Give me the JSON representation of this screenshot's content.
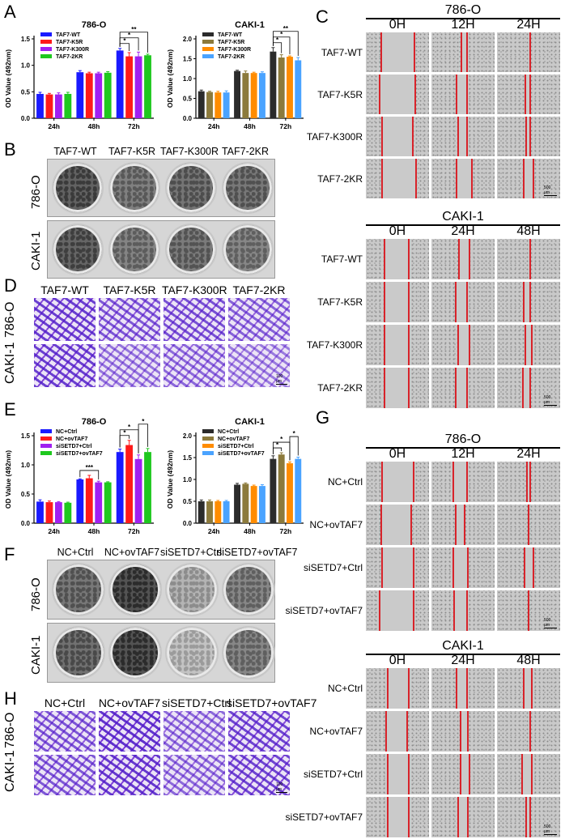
{
  "figure": {
    "panels": {
      "A": "A",
      "B": "B",
      "C": "C",
      "D": "D",
      "E": "E",
      "F": "F",
      "G": "G",
      "H": "H"
    }
  },
  "chart_data": [
    {
      "id": "A-786O",
      "type": "bar",
      "title": "786-O",
      "xlabel": "",
      "ylabel": "OD Value (492nm)",
      "ylim": [
        0,
        1.5
      ],
      "yticks": [
        "0.0",
        "0.5",
        "1.0",
        "1.5"
      ],
      "categories": [
        "24h",
        "48h",
        "72h"
      ],
      "legend_position": "top-left",
      "series": [
        {
          "name": "TAF7-WT",
          "color": "#1a1aff",
          "values": [
            0.46,
            0.87,
            1.28
          ],
          "errors": [
            0.03,
            0.03,
            0.04
          ]
        },
        {
          "name": "TAF7-K5R",
          "color": "#ff1a1a",
          "values": [
            0.45,
            0.85,
            1.17
          ],
          "errors": [
            0.02,
            0.02,
            0.07
          ]
        },
        {
          "name": "TAF7-K300R",
          "color": "#a020f0",
          "values": [
            0.45,
            0.85,
            1.17
          ],
          "errors": [
            0.03,
            0.02,
            0.08
          ]
        },
        {
          "name": "TAF7-2KR",
          "color": "#1ec81e",
          "values": [
            0.46,
            0.86,
            1.19
          ],
          "errors": [
            0.03,
            0.02,
            0.02
          ]
        }
      ],
      "annotations": [
        {
          "group": "72h",
          "from": "TAF7-WT",
          "to": "TAF7-K5R",
          "label": "*"
        },
        {
          "group": "72h",
          "from": "TAF7-WT",
          "to": "TAF7-K300R",
          "label": "*"
        },
        {
          "group": "72h",
          "from": "TAF7-WT",
          "to": "TAF7-2KR",
          "label": "**"
        }
      ]
    },
    {
      "id": "A-CAKI1",
      "type": "bar",
      "title": "CAKI-1",
      "xlabel": "",
      "ylabel": "OD Value (492nm)",
      "ylim": [
        0,
        2.0
      ],
      "yticks": [
        "0.0",
        "0.5",
        "1.0",
        "1.5",
        "2.0"
      ],
      "categories": [
        "24h",
        "48h",
        "72h"
      ],
      "legend_position": "top-left",
      "series": [
        {
          "name": "TAF7-WT",
          "color": "#2b2b2b",
          "values": [
            0.68,
            1.19,
            1.68
          ],
          "errors": [
            0.03,
            0.02,
            0.1
          ]
        },
        {
          "name": "TAF7-K5R",
          "color": "#8c7a3c",
          "values": [
            0.66,
            1.14,
            1.53
          ],
          "errors": [
            0.02,
            0.05,
            0.07
          ]
        },
        {
          "name": "TAF7-K300R",
          "color": "#ff8c00",
          "values": [
            0.65,
            1.14,
            1.55
          ],
          "errors": [
            0.03,
            0.02,
            0.02
          ]
        },
        {
          "name": "TAF7-2KR",
          "color": "#4aa3ff",
          "values": [
            0.65,
            1.14,
            1.46
          ],
          "errors": [
            0.04,
            0.03,
            0.07
          ]
        }
      ],
      "annotations": [
        {
          "group": "72h",
          "from": "TAF7-WT",
          "to": "TAF7-K5R",
          "label": "*"
        },
        {
          "group": "72h",
          "from": "TAF7-WT",
          "to": "TAF7-K300R",
          "label": "*"
        },
        {
          "group": "72h",
          "from": "TAF7-WT",
          "to": "TAF7-2KR",
          "label": "**"
        }
      ]
    },
    {
      "id": "E-786O",
      "type": "bar",
      "title": "786-O",
      "xlabel": "",
      "ylabel": "OD Value (492nm)",
      "ylim": [
        0,
        1.5
      ],
      "yticks": [
        "0.0",
        "0.5",
        "1.0",
        "1.5"
      ],
      "categories": [
        "24h",
        "48h",
        "72h"
      ],
      "legend_position": "top-left",
      "series": [
        {
          "name": "NC+Ctrl",
          "color": "#1a1aff",
          "values": [
            0.37,
            0.75,
            1.22
          ],
          "errors": [
            0.03,
            0.01,
            0.05
          ]
        },
        {
          "name": "NC+ovTAF7",
          "color": "#ff1a1a",
          "values": [
            0.36,
            0.77,
            1.34
          ],
          "errors": [
            0.02,
            0.05,
            0.08
          ]
        },
        {
          "name": "siSETD7+Ctrl",
          "color": "#a020f0",
          "values": [
            0.36,
            0.7,
            1.1
          ],
          "errors": [
            0.01,
            0.02,
            0.07
          ]
        },
        {
          "name": "siSETD7+ovTAF7",
          "color": "#1ec81e",
          "values": [
            0.35,
            0.7,
            1.22
          ],
          "errors": [
            0.01,
            0.01,
            0.06
          ]
        }
      ],
      "annotations": [
        {
          "group": "48h",
          "from": "NC+Ctrl",
          "to": "siSETD7+Ctrl",
          "label": "***"
        },
        {
          "group": "72h",
          "from": "NC+Ctrl",
          "to": "NC+ovTAF7",
          "label": "*"
        },
        {
          "group": "72h",
          "from": "NC+Ctrl",
          "to": "siSETD7+Ctrl",
          "label": "*"
        },
        {
          "group": "72h",
          "from": "siSETD7+Ctrl",
          "to": "siSETD7+ovTAF7",
          "label": "*"
        }
      ]
    },
    {
      "id": "E-CAKI1",
      "type": "bar",
      "title": "CAKI-1",
      "xlabel": "",
      "ylabel": "OD Value (492nm)",
      "ylim": [
        0,
        2.0
      ],
      "yticks": [
        "0.0",
        "0.5",
        "1.0",
        "1.5",
        "2.0"
      ],
      "categories": [
        "24h",
        "48h",
        "72h"
      ],
      "legend_position": "top-left",
      "series": [
        {
          "name": "NC+Ctrl",
          "color": "#2b2b2b",
          "values": [
            0.5,
            0.88,
            1.47
          ],
          "errors": [
            0.03,
            0.03,
            0.07
          ]
        },
        {
          "name": "NC+ovTAF7",
          "color": "#8c7a3c",
          "values": [
            0.5,
            0.9,
            1.57
          ],
          "errors": [
            0.03,
            0.02,
            0.04
          ]
        },
        {
          "name": "siSETD7+Ctrl",
          "color": "#ff8c00",
          "values": [
            0.5,
            0.85,
            1.37
          ],
          "errors": [
            0.02,
            0.02,
            0.03
          ]
        },
        {
          "name": "siSETD7+ovTAF7",
          "color": "#4aa3ff",
          "values": [
            0.5,
            0.85,
            1.47
          ],
          "errors": [
            0.02,
            0.03,
            0.04
          ]
        }
      ],
      "annotations": [
        {
          "group": "72h",
          "from": "NC+Ctrl",
          "to": "NC+ovTAF7",
          "label": "*"
        },
        {
          "group": "72h",
          "from": "NC+Ctrl",
          "to": "siSETD7+Ctrl",
          "label": "*"
        },
        {
          "group": "72h",
          "from": "siSETD7+Ctrl",
          "to": "siSETD7+ovTAF7",
          "label": "*"
        }
      ]
    }
  ],
  "panel_B": {
    "columns": [
      "TAF7-WT",
      "TAF7-K5R",
      "TAF7-K300R",
      "TAF7-2KR"
    ],
    "rows": [
      "786-O",
      "CAKI-1"
    ],
    "intensity": [
      [
        0.75,
        0.55,
        0.62,
        0.6
      ],
      [
        0.72,
        0.52,
        0.58,
        0.5
      ]
    ]
  },
  "panel_D": {
    "columns": [
      "TAF7-WT",
      "TAF7-K5R",
      "TAF7-K300R",
      "TAF7-2KR"
    ],
    "rows": [
      "786-O",
      "CAKI-1"
    ],
    "density": [
      [
        0.8,
        0.6,
        0.65,
        0.5
      ],
      [
        0.8,
        0.35,
        0.45,
        0.3
      ]
    ],
    "scale_bar": "100 μm"
  },
  "panel_C": {
    "blocks": [
      {
        "cell_line": "786-O",
        "times": [
          "0H",
          "12H",
          "24H"
        ],
        "rows": [
          "TAF7-WT",
          "TAF7-K5R",
          "TAF7-K300R",
          "TAF7-2KR"
        ],
        "gaps": [
          [
            [
              0.24,
              0.77
            ],
            [
              0.47,
              0.57
            ],
            [
              0.52,
              0.52
            ]
          ],
          [
            [
              0.22,
              0.78
            ],
            [
              0.4,
              0.56
            ],
            [
              0.45,
              0.53
            ]
          ],
          [
            [
              0.26,
              0.74
            ],
            [
              0.42,
              0.56
            ],
            [
              0.46,
              0.53
            ]
          ],
          [
            [
              0.26,
              0.79
            ],
            [
              0.4,
              0.64
            ],
            [
              0.42,
              0.58
            ]
          ]
        ],
        "scale_bar": "500 μm"
      },
      {
        "cell_line": "CAKI-1",
        "times": [
          "0H",
          "24H",
          "48H"
        ],
        "rows": [
          "TAF7-WT",
          "TAF7-K5R",
          "TAF7-K300R",
          "TAF7-2KR"
        ],
        "gaps": [
          [
            [
              0.3,
              0.68
            ],
            [
              0.44,
              0.6
            ],
            [
              0.52,
              0.52
            ]
          ],
          [
            [
              0.3,
              0.68
            ],
            [
              0.38,
              0.56
            ],
            [
              0.42,
              0.52
            ]
          ],
          [
            [
              0.3,
              0.68
            ],
            [
              0.42,
              0.6
            ],
            [
              0.45,
              0.55
            ]
          ],
          [
            [
              0.3,
              0.68
            ],
            [
              0.38,
              0.56
            ],
            [
              0.41,
              0.52
            ]
          ]
        ],
        "scale_bar": "500 μm"
      }
    ]
  },
  "panel_F": {
    "columns": [
      "NC+Ctrl",
      "NC+ovTAF7",
      "siSETD7+Ctrl",
      "siSETD7+ovTAF7"
    ],
    "rows": [
      "786-O",
      "CAKI-1"
    ],
    "intensity": [
      [
        0.6,
        0.85,
        0.2,
        0.5
      ],
      [
        0.65,
        0.85,
        0.1,
        0.5
      ]
    ]
  },
  "panel_H": {
    "columns": [
      "NC+Ctrl",
      "NC+ovTAF7",
      "siSETD7+Ctrl",
      "siSETD7+ovTAF7"
    ],
    "rows": [
      "786-O",
      "CAKI-1"
    ],
    "density": [
      [
        0.6,
        0.9,
        0.45,
        0.75
      ],
      [
        0.6,
        0.85,
        0.45,
        0.75
      ]
    ],
    "scale_bar": "100 μm"
  },
  "panel_G": {
    "blocks": [
      {
        "cell_line": "786-O",
        "times": [
          "0H",
          "12H",
          "24H"
        ],
        "rows": [
          "NC+Ctrl",
          "NC+ovTAF7",
          "siSETD7+Ctrl",
          "siSETD7+ovTAF7"
        ],
        "gaps": [
          [
            [
              0.25,
              0.76
            ],
            [
              0.34,
              0.56
            ],
            [
              0.48,
              0.52
            ]
          ],
          [
            [
              0.24,
              0.72
            ],
            [
              0.38,
              0.52
            ],
            [
              0.5,
              0.5
            ]
          ],
          [
            [
              0.25,
              0.76
            ],
            [
              0.34,
              0.58
            ],
            [
              0.44,
              0.58
            ]
          ],
          [
            [
              0.22,
              0.76
            ],
            [
              0.36,
              0.56
            ],
            [
              0.5,
              0.5
            ]
          ]
        ],
        "scale_bar": "500 μm"
      },
      {
        "cell_line": "CAKI-1",
        "times": [
          "0H",
          "24H",
          "48H"
        ],
        "rows": [
          "NC+Ctrl",
          "NC+ovTAF7",
          "siSETD7+Ctrl",
          "siSETD7+ovTAF7"
        ],
        "gaps": [
          [
            [
              0.34,
              0.68
            ],
            [
              0.4,
              0.56
            ],
            [
              0.42,
              0.55
            ]
          ],
          [
            [
              0.32,
              0.66
            ],
            [
              0.46,
              0.58
            ],
            [
              0.52,
              0.52
            ]
          ],
          [
            [
              0.35,
              0.68
            ],
            [
              0.46,
              0.6
            ],
            [
              0.4,
              0.55
            ]
          ],
          [
            [
              0.35,
              0.68
            ],
            [
              0.42,
              0.58
            ],
            [
              0.46,
              0.52
            ]
          ]
        ],
        "scale_bar": "500 μm"
      }
    ]
  }
}
